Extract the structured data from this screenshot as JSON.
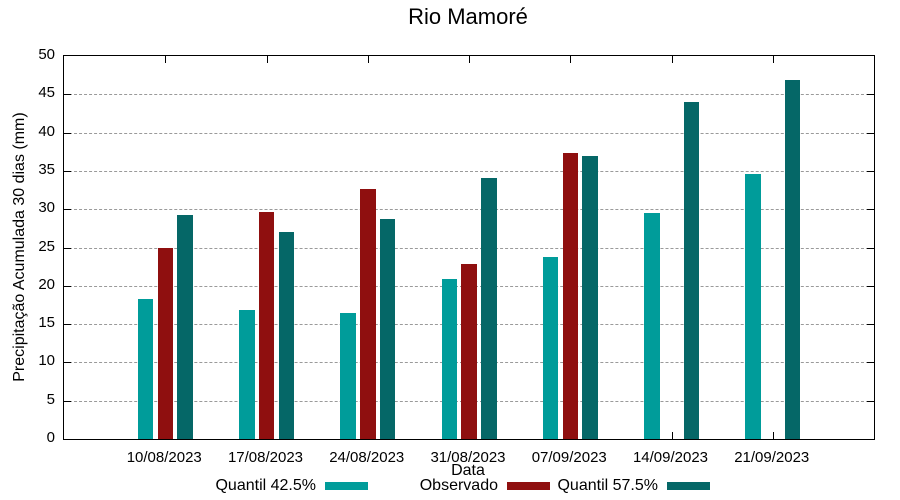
{
  "title": "Rio Mamoré",
  "axes": {
    "x_label": "Data",
    "y_label": "Precipitação Acumulada 30 dias (mm)",
    "y_ticks": [
      0,
      5,
      10,
      15,
      20,
      25,
      30,
      35,
      40,
      45,
      50
    ],
    "ylim": [
      0,
      50
    ]
  },
  "legend": [
    {
      "label": "Quantil 42.5%",
      "color": "#009c9a"
    },
    {
      "label": "Observado",
      "color": "#8f0f0f"
    },
    {
      "label": "Quantil 57.5%",
      "color": "#056767"
    }
  ],
  "chart_data": {
    "type": "bar",
    "title": "Rio Mamoré",
    "xlabel": "Data",
    "ylabel": "Precipitação Acumulada 30 dias (mm)",
    "ylim": [
      0,
      50
    ],
    "grid": true,
    "legend_position": "bottom",
    "categories": [
      "10/08/2023",
      "17/08/2023",
      "24/08/2023",
      "31/08/2023",
      "07/09/2023",
      "14/09/2023",
      "21/09/2023"
    ],
    "series": [
      {
        "name": "Quantil 42.5%",
        "color": "#009c9a",
        "values": [
          18.3,
          16.9,
          16.4,
          20.9,
          23.7,
          29.5,
          34.6
        ]
      },
      {
        "name": "Observado",
        "color": "#8f0f0f",
        "values": [
          24.9,
          29.7,
          32.6,
          22.9,
          37.4,
          null,
          null
        ]
      },
      {
        "name": "Quantil 57.5%",
        "color": "#056767",
        "values": [
          29.2,
          27.0,
          28.7,
          34.1,
          37.0,
          44.0,
          46.9
        ]
      }
    ]
  }
}
